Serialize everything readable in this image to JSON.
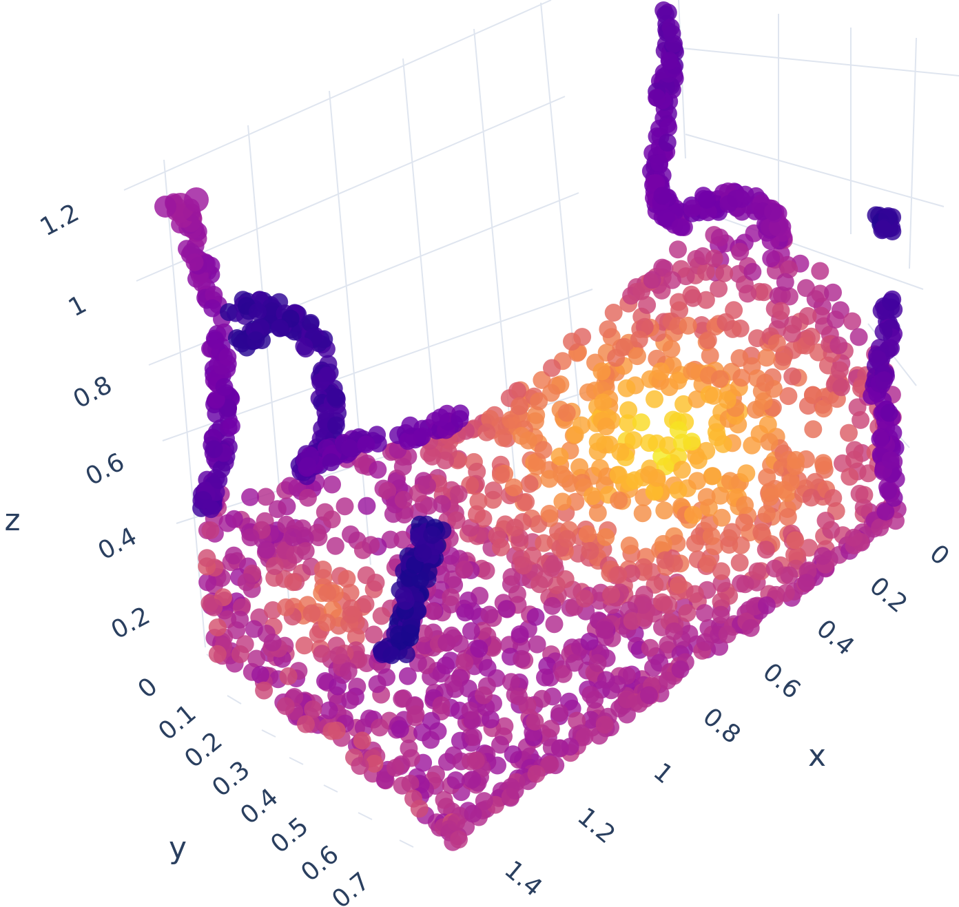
{
  "chart_data": {
    "type": "scatter3d",
    "title": "",
    "colorscale": [
      "#0d0887",
      "#46039f",
      "#7201a8",
      "#9c179e",
      "#bd3786",
      "#d8576b",
      "#ed7953",
      "#fb9f3a",
      "#fdca26",
      "#f0f921"
    ],
    "axes": {
      "x": {
        "title": "x",
        "ticks": [
          "0",
          "0.2",
          "0.4",
          "0.6",
          "0.8",
          "1",
          "1.2",
          "1.4"
        ]
      },
      "y": {
        "title": "y",
        "ticks": [
          "0",
          "0.1",
          "0.2",
          "0.3",
          "0.4",
          "0.5",
          "0.6",
          "0.7"
        ]
      },
      "z": {
        "title": "z",
        "ticks": [
          "0.2",
          "0.4",
          "0.6",
          "0.8",
          "1",
          "1.2"
        ]
      }
    },
    "grid": true,
    "shape": "bed-shaped point cloud with headboard and footboard posts; color mapped to height above the mattress surface"
  }
}
